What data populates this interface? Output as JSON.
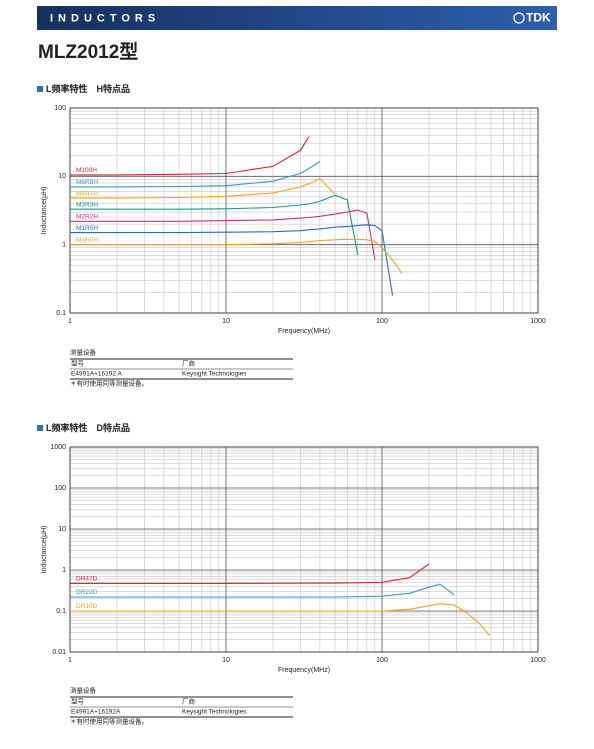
{
  "header": {
    "section": "INDUCTORS",
    "logo": "TDK"
  },
  "title": "MLZ2012型",
  "chart_data": [
    {
      "type": "line",
      "title": "L频率特性　H特点品",
      "x_label": "Frequency(MHz)",
      "y_label": "Inductance(µH)",
      "xscale": "log",
      "yscale": "log",
      "grid": true,
      "xlim": [
        1,
        1000
      ],
      "ylim": [
        0.1,
        100
      ],
      "xticks": [
        1,
        10,
        100,
        1000
      ],
      "yticks": [
        0.1,
        1,
        10,
        100
      ],
      "x": [
        1,
        2,
        5,
        10,
        20,
        30,
        34,
        40,
        50,
        60,
        70,
        80,
        90,
        100,
        117,
        134
      ],
      "series": [
        {
          "name": "M100H",
          "color": "#d9262f",
          "values": [
            10.5,
            10.5,
            10.7,
            11,
            14,
            24,
            38,
            null,
            null,
            null,
            null,
            null,
            null,
            null,
            null,
            null
          ]
        },
        {
          "name": "M6R8H",
          "color": "#3a9bd0",
          "values": [
            7,
            7,
            7.1,
            7.3,
            8.5,
            11,
            13,
            16.5,
            null,
            null,
            null,
            null,
            null,
            null,
            null,
            null
          ]
        },
        {
          "name": "M4R7H",
          "color": "#f2a51e",
          "values": [
            4.8,
            4.8,
            4.9,
            5.1,
            5.7,
            7,
            7.8,
            9.3,
            5.5,
            null,
            null,
            null,
            null,
            null,
            null,
            null
          ]
        },
        {
          "name": "M3R3H",
          "color": "#1a9a8a",
          "values": [
            3.3,
            3.3,
            3.3,
            3.35,
            3.5,
            3.8,
            3.95,
            4.3,
            5.3,
            4.5,
            0.7,
            null,
            null,
            null,
            null,
            null
          ]
        },
        {
          "name": "M2R2H",
          "color": "#c7317a",
          "values": [
            2.2,
            2.2,
            2.2,
            2.25,
            2.3,
            2.45,
            2.5,
            2.6,
            2.8,
            3.0,
            3.2,
            2.9,
            0.6,
            null,
            null,
            null
          ]
        },
        {
          "name": "M1R5H",
          "color": "#2a6db5",
          "values": [
            1.5,
            1.5,
            1.5,
            1.52,
            1.55,
            1.6,
            1.65,
            1.7,
            1.8,
            1.85,
            1.9,
            1.95,
            1.9,
            1.6,
            0.18,
            null
          ]
        },
        {
          "name": "M1R0H",
          "color": "#f0a030",
          "values": [
            1.0,
            1.0,
            1.0,
            1.0,
            1.03,
            1.08,
            1.1,
            1.15,
            1.18,
            1.2,
            1.2,
            1.18,
            1.12,
            0.9,
            0.6,
            0.38
          ]
        }
      ]
    },
    {
      "type": "line",
      "title": "L频率特性　D特点品",
      "x_label": "Frequency(MHz)",
      "y_label": "Inductance(µH)",
      "xscale": "log",
      "yscale": "log",
      "grid": true,
      "xlim": [
        1,
        1000
      ],
      "ylim": [
        0.01,
        1000
      ],
      "xticks": [
        1,
        10,
        100,
        1000
      ],
      "yticks": [
        0.01,
        0.1,
        1,
        10,
        100,
        1000
      ],
      "x": [
        1,
        10,
        50,
        100,
        150,
        200,
        235,
        290,
        350,
        420,
        490
      ],
      "series": [
        {
          "name": "DR47D",
          "color": "#d9262f",
          "values": [
            0.47,
            0.47,
            0.48,
            0.5,
            0.65,
            1.4,
            null,
            null,
            null,
            null,
            null
          ]
        },
        {
          "name": "DR22D",
          "color": "#3a9bd0",
          "values": [
            0.22,
            0.22,
            0.22,
            0.23,
            0.27,
            0.38,
            0.45,
            0.25,
            null,
            null,
            null
          ]
        },
        {
          "name": "DR10D",
          "color": "#f2a51e",
          "values": [
            0.1,
            0.1,
            0.1,
            0.1,
            0.11,
            0.135,
            0.15,
            0.14,
            0.09,
            0.05,
            0.025
          ]
        }
      ]
    }
  ],
  "tables": [
    {
      "caption": "测量设备",
      "columns": [
        "型号",
        "厂商"
      ],
      "rows": [
        [
          "E4991A+16192 A",
          "Keysight Technologies"
        ]
      ],
      "note": "＊有时使用同等测量设备。"
    },
    {
      "caption": "测量设备",
      "columns": [
        "型号",
        "厂商"
      ],
      "rows": [
        [
          "E4991A+16192A",
          "Keysight Technologies"
        ]
      ],
      "note": "＊有时使用同等测量设备。"
    }
  ]
}
